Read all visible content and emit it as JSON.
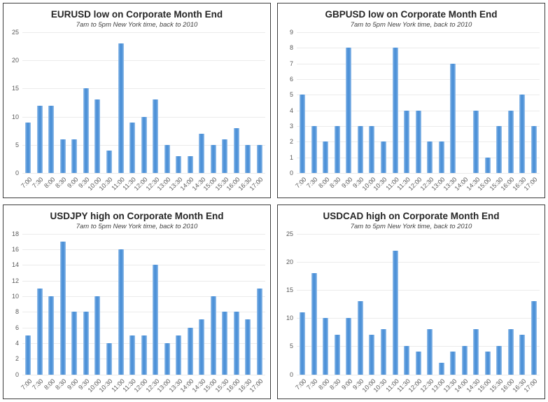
{
  "page": {
    "background": "#ffffff"
  },
  "colors": {
    "bar_core": "#4e92d8",
    "bar_edge": "#9cc3ec",
    "gridline": "#ebebeb",
    "axis_text": "#595959",
    "title_text": "#262626",
    "subtitle_text": "#404040",
    "panel_border": "#3d3d3d"
  },
  "chart_data": [
    {
      "type": "bar",
      "title": "EURUSD low on Corporate Month End",
      "subtitle": "7am to 5pm New York time, back to 2010",
      "categories": [
        "7:00",
        "7:30",
        "8:00",
        "8:30",
        "9:00",
        "9:30",
        "10:00",
        "10:30",
        "11:00",
        "11:30",
        "12:00",
        "12:30",
        "13:00",
        "13:30",
        "14:00",
        "14:30",
        "15:00",
        "15:30",
        "16:00",
        "16:30",
        "17:00"
      ],
      "values": [
        9,
        12,
        12,
        6,
        6,
        15,
        13,
        4,
        23,
        9,
        10,
        13,
        5,
        3,
        3,
        7,
        5,
        6,
        8,
        5,
        5
      ],
      "xlabel": "",
      "ylabel": "",
      "ylim": [
        0,
        25
      ],
      "ytick_step": 5,
      "grid": true,
      "legend": false
    },
    {
      "type": "bar",
      "title": "GBPUSD low on Corporate Month End",
      "subtitle": "7am to 5pm New York time, back to 2010",
      "categories": [
        "7:00",
        "7:30",
        "8:00",
        "8:30",
        "9:00",
        "9:30",
        "10:00",
        "10:30",
        "11:00",
        "11:30",
        "12:00",
        "12:30",
        "13:00",
        "13:30",
        "14:00",
        "14:30",
        "15:00",
        "15:30",
        "16:00",
        "16:30",
        "17:00"
      ],
      "values": [
        5,
        3,
        2,
        3,
        8,
        3,
        3,
        2,
        8,
        4,
        4,
        2,
        2,
        7,
        0,
        4,
        1,
        3,
        4,
        5,
        3
      ],
      "xlabel": "",
      "ylabel": "",
      "ylim": [
        0,
        9
      ],
      "ytick_step": 1,
      "grid": true,
      "legend": false
    },
    {
      "type": "bar",
      "title": "USDJPY high on Corporate Month End",
      "subtitle": "7am to 5pm New York time, back to 2010",
      "categories": [
        "7:00",
        "7:30",
        "8:00",
        "8:30",
        "9:00",
        "9:30",
        "10:00",
        "10:30",
        "11:00",
        "11:30",
        "12:00",
        "12:30",
        "13:00",
        "13:30",
        "14:00",
        "14:30",
        "15:00",
        "15:30",
        "16:00",
        "16:30",
        "17:00"
      ],
      "values": [
        5,
        11,
        10,
        17,
        8,
        8,
        10,
        4,
        16,
        5,
        5,
        14,
        4,
        5,
        6,
        7,
        10,
        8,
        8,
        7,
        11
      ],
      "xlabel": "",
      "ylabel": "",
      "ylim": [
        0,
        18
      ],
      "ytick_step": 2,
      "grid": true,
      "legend": false
    },
    {
      "type": "bar",
      "title": "USDCAD high on Corporate Month End",
      "subtitle": "7am to 5pm New York time, back to 2010",
      "categories": [
        "7:00",
        "7:30",
        "8:00",
        "8:30",
        "9:00",
        "9:30",
        "10:00",
        "10:30",
        "11:00",
        "11:30",
        "12:00",
        "12:30",
        "13:00",
        "13:30",
        "14:00",
        "14:30",
        "15:00",
        "15:30",
        "16:00",
        "16:30",
        "17:00"
      ],
      "values": [
        11,
        18,
        10,
        7,
        10,
        13,
        7,
        8,
        22,
        5,
        4,
        8,
        2,
        4,
        5,
        8,
        4,
        5,
        8,
        7,
        13
      ],
      "xlabel": "",
      "ylabel": "",
      "ylim": [
        0,
        25
      ],
      "ytick_step": 5,
      "grid": true,
      "legend": false
    }
  ]
}
